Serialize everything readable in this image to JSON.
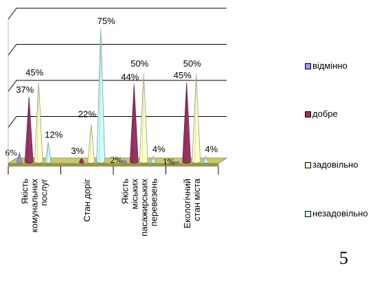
{
  "chart_data": {
    "type": "bar",
    "title": "",
    "categories": [
      "Якість комунальних послуг",
      "Стан доріг",
      "Якість міських пасажирських перевезень",
      "Екологічний стан міста"
    ],
    "series": [
      {
        "name": "відмінно",
        "color": "#9999ff",
        "values": [
          6,
          0,
          2,
          1
        ],
        "labels": [
          "6%",
          "",
          "2%",
          "1%"
        ]
      },
      {
        "name": "добре",
        "color": "#993366",
        "values": [
          37,
          3,
          44,
          45
        ],
        "labels": [
          "37%",
          "3%",
          "44%",
          "45%"
        ]
      },
      {
        "name": "задовільно",
        "color": "#ffffcc",
        "values": [
          45,
          22,
          50,
          50
        ],
        "labels": [
          "45%",
          "22%",
          "50%",
          "50%"
        ]
      },
      {
        "name": "незадовільно",
        "color": "#ccffff",
        "values": [
          12,
          75,
          4,
          4
        ],
        "labels": [
          "12%",
          "75%",
          "4%",
          "4%"
        ]
      }
    ],
    "ylim": [
      0,
      80
    ],
    "grid": true,
    "legend_position": "right",
    "shape": "cone"
  },
  "page_number": "5"
}
